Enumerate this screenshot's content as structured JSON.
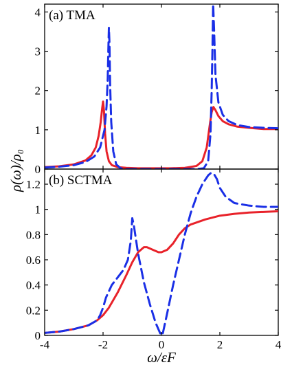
{
  "colors": {
    "series_1": "#e8222a",
    "series_2": "#1a2fe6",
    "axis": "#000000"
  },
  "chart_data": [
    {
      "type": "line",
      "panel_label": "(a) TMA",
      "xlim": [
        -4,
        4
      ],
      "ylim": [
        0,
        4.2
      ],
      "x_ticks": [
        -4,
        -2,
        0,
        2,
        4
      ],
      "y_ticks": [
        0,
        1,
        2,
        3,
        4
      ],
      "y_tick_labels": [
        "0",
        "1",
        "2",
        "3",
        "4"
      ],
      "series": [
        {
          "style": "solid",
          "color": "#e8222a",
          "x": [
            -4.0,
            -3.5,
            -3.0,
            -2.6,
            -2.4,
            -2.25,
            -2.15,
            -2.08,
            -2.03,
            -2.0,
            -1.97,
            -1.93,
            -1.88,
            -1.8,
            -1.7,
            -1.5,
            -1.2,
            -0.8,
            -0.3,
            0.0,
            0.3,
            0.8,
            1.2,
            1.4,
            1.55,
            1.65,
            1.72,
            1.78,
            1.85,
            1.95,
            2.1,
            2.3,
            2.6,
            3.0,
            3.5,
            4.0
          ],
          "y": [
            0.05,
            0.07,
            0.12,
            0.22,
            0.35,
            0.55,
            0.85,
            1.2,
            1.55,
            1.72,
            1.5,
            0.9,
            0.45,
            0.2,
            0.1,
            0.05,
            0.03,
            0.02,
            0.02,
            0.02,
            0.02,
            0.03,
            0.08,
            0.2,
            0.55,
            1.1,
            1.45,
            1.58,
            1.5,
            1.35,
            1.22,
            1.14,
            1.08,
            1.05,
            1.02,
            1.02
          ]
        },
        {
          "style": "dashed",
          "color": "#1a2fe6",
          "x": [
            -4.0,
            -3.5,
            -3.0,
            -2.6,
            -2.3,
            -2.1,
            -1.95,
            -1.88,
            -1.84,
            -1.82,
            -1.8,
            -1.78,
            -1.76,
            -1.72,
            -1.65,
            -1.55,
            -1.4,
            -1.2,
            -0.8,
            0.0,
            0.8,
            1.2,
            1.45,
            1.6,
            1.68,
            1.72,
            1.75,
            1.77,
            1.8,
            1.85,
            1.95,
            2.1,
            2.3,
            2.6,
            3.0,
            3.5,
            4.0
          ],
          "y": [
            0.04,
            0.06,
            0.1,
            0.18,
            0.32,
            0.55,
            1.0,
            1.6,
            2.3,
            3.0,
            3.6,
            3.2,
            2.2,
            1.2,
            0.45,
            0.12,
            0.02,
            0.0,
            0.0,
            0.0,
            0.0,
            0.0,
            0.02,
            0.2,
            0.9,
            2.0,
            3.2,
            4.2,
            3.6,
            2.4,
            1.7,
            1.38,
            1.22,
            1.12,
            1.07,
            1.05,
            1.04
          ]
        }
      ]
    },
    {
      "type": "line",
      "panel_label": "(b) SCTMA",
      "xlim": [
        -4,
        4
      ],
      "ylim": [
        0,
        1.32
      ],
      "x_ticks": [
        -4,
        -2,
        0,
        2,
        4
      ],
      "x_tick_labels": [
        "-4",
        "-2",
        "0",
        "2",
        "4"
      ],
      "y_ticks": [
        0,
        0.2,
        0.4,
        0.6,
        0.8,
        1.0,
        1.2
      ],
      "y_tick_labels": [
        "0",
        "0.2",
        "0.4",
        "0.6",
        "0.8",
        "1",
        "1.2"
      ],
      "series": [
        {
          "style": "solid",
          "color": "#e8222a",
          "x": [
            -4.0,
            -3.5,
            -3.0,
            -2.5,
            -2.2,
            -2.0,
            -1.8,
            -1.5,
            -1.2,
            -1.0,
            -0.8,
            -0.6,
            -0.5,
            -0.3,
            -0.1,
            0.0,
            0.2,
            0.4,
            0.6,
            0.8,
            1.0,
            1.5,
            2.0,
            2.5,
            3.0,
            3.5,
            4.0
          ],
          "y": [
            0.02,
            0.03,
            0.05,
            0.08,
            0.12,
            0.16,
            0.22,
            0.34,
            0.48,
            0.58,
            0.66,
            0.7,
            0.7,
            0.68,
            0.66,
            0.66,
            0.68,
            0.73,
            0.8,
            0.85,
            0.88,
            0.92,
            0.95,
            0.965,
            0.975,
            0.98,
            0.985
          ]
        },
        {
          "style": "dashed",
          "color": "#1a2fe6",
          "x": [
            -4.0,
            -3.5,
            -3.0,
            -2.5,
            -2.2,
            -2.1,
            -2.0,
            -1.9,
            -1.7,
            -1.5,
            -1.3,
            -1.15,
            -1.05,
            -1.0,
            -0.95,
            -0.8,
            -0.6,
            -0.4,
            -0.2,
            -0.05,
            0.0,
            0.05,
            0.2,
            0.4,
            0.6,
            0.8,
            1.0,
            1.2,
            1.4,
            1.6,
            1.7,
            1.8,
            1.9,
            2.0,
            2.2,
            2.5,
            3.0,
            3.5,
            4.0
          ],
          "y": [
            0.02,
            0.03,
            0.05,
            0.08,
            0.12,
            0.16,
            0.22,
            0.3,
            0.4,
            0.46,
            0.52,
            0.6,
            0.75,
            0.93,
            0.88,
            0.65,
            0.42,
            0.25,
            0.1,
            0.02,
            0.0,
            0.02,
            0.18,
            0.4,
            0.6,
            0.8,
            0.97,
            1.1,
            1.2,
            1.27,
            1.29,
            1.28,
            1.24,
            1.17,
            1.1,
            1.05,
            1.03,
            1.02,
            1.02
          ]
        }
      ]
    }
  ],
  "ylabel": "ρ(ω)/ρ₀",
  "xlabel": "ω/εF"
}
